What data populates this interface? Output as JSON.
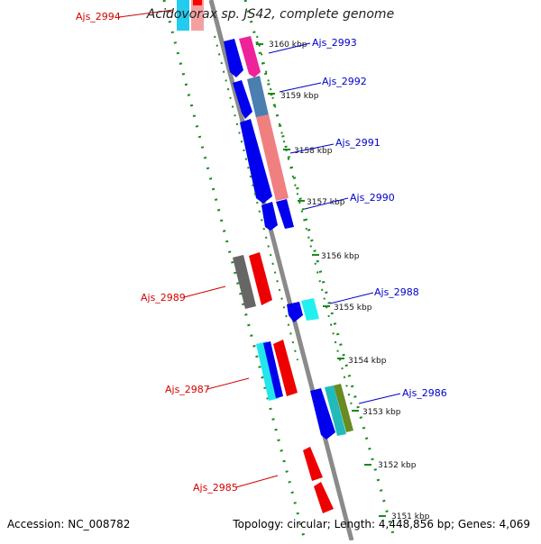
{
  "title": "Acidovorax sp. JS42, complete genome",
  "footer": {
    "accession": "Accession: NC_008782",
    "summary": "Topology: circular; Length: 4,448,856 bp; Genes: 4,069"
  },
  "colors": {
    "backbone": "#8a8a8a",
    "tick": "#1a8a1a",
    "label_forward": "#d40000",
    "label_reverse": "#0000cc"
  },
  "scale_ticks": [
    "3160 kbp",
    "3159 kbp",
    "3158 kbp",
    "3157 kbp",
    "3156 kbp",
    "3155 kbp",
    "3154 kbp",
    "3153 kbp",
    "3152 kbp",
    "3151 kbp"
  ],
  "gene_labels": [
    {
      "name": "Ajs_2994",
      "strand": "forward"
    },
    {
      "name": "Ajs_2993",
      "strand": "reverse"
    },
    {
      "name": "Ajs_2992",
      "strand": "reverse"
    },
    {
      "name": "Ajs_2991",
      "strand": "reverse"
    },
    {
      "name": "Ajs_2990",
      "strand": "reverse"
    },
    {
      "name": "Ajs_2989",
      "strand": "forward"
    },
    {
      "name": "Ajs_2988",
      "strand": "reverse"
    },
    {
      "name": "Ajs_2987",
      "strand": "forward"
    },
    {
      "name": "Ajs_2986",
      "strand": "reverse"
    },
    {
      "name": "Ajs_2985",
      "strand": "forward"
    }
  ]
}
